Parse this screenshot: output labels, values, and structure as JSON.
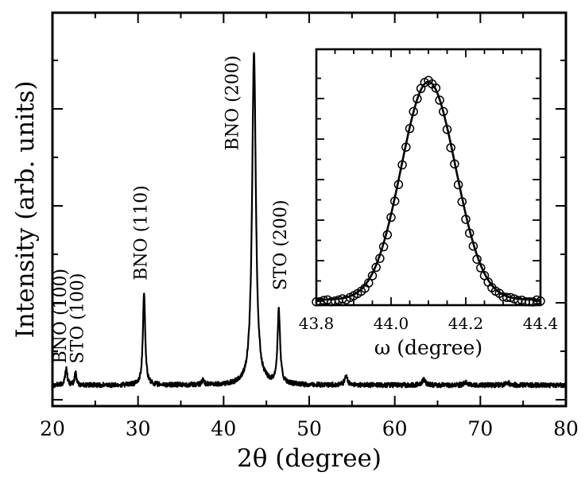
{
  "chart_data": [
    {
      "id": "main",
      "type": "line",
      "title": "",
      "xlabel": "2θ (degree)",
      "ylabel": "Intensity (arb. units)",
      "xlim": [
        20,
        80
      ],
      "ylim": [
        0,
        100
      ],
      "xticks": [
        20,
        30,
        40,
        50,
        60,
        70,
        80
      ],
      "baseline": 1.5,
      "noise": 0.7,
      "peaks": [
        {
          "center": 21.6,
          "height": 5.0,
          "width": 0.15
        },
        {
          "center": 22.7,
          "height": 4.0,
          "width": 0.12
        },
        {
          "center": 30.7,
          "height": 28.0,
          "width": 0.16
        },
        {
          "center": 37.6,
          "height": 1.6,
          "width": 0.15
        },
        {
          "center": 43.55,
          "height": 100.0,
          "width": 0.26
        },
        {
          "center": 46.45,
          "height": 22.0,
          "width": 0.18
        },
        {
          "center": 54.3,
          "height": 2.6,
          "width": 0.2
        },
        {
          "center": 63.4,
          "height": 1.6,
          "width": 0.25
        },
        {
          "center": 68.3,
          "height": 0.8,
          "width": 0.25
        },
        {
          "center": 73.2,
          "height": 0.8,
          "width": 0.25
        }
      ],
      "annotations": [
        {
          "text": "BNO (100)",
          "x": 21.6,
          "y": 8
        },
        {
          "text": "STO (100)",
          "x": 23.6,
          "y": 8
        },
        {
          "text": "BNO (110)",
          "x": 31.0,
          "y": 33
        },
        {
          "text": "BNO (200)",
          "x": 41.7,
          "y": 72
        },
        {
          "text": "STO (200)",
          "x": 47.3,
          "y": 30
        }
      ]
    },
    {
      "id": "inset",
      "type": "scatter",
      "title": "",
      "xlabel": "ω (degree)",
      "ylabel": "",
      "xlim": [
        43.8,
        44.4
      ],
      "ylim": [
        0,
        1.05
      ],
      "xticks": [
        43.8,
        44.0,
        44.2,
        44.4
      ],
      "xtick_labels": [
        "43.8",
        "44.0",
        "44.2",
        "44.4"
      ],
      "fit": {
        "center": 44.1,
        "amplitude": 0.98,
        "sigma": 0.073,
        "background": 0.01
      },
      "points": {
        "x_start": 43.8,
        "x_end": 44.4,
        "step": 0.01,
        "amplitude": 0.965,
        "sigma": 0.071,
        "tail_amplitude": 0.03,
        "tail_width": 0.12
      }
    }
  ]
}
